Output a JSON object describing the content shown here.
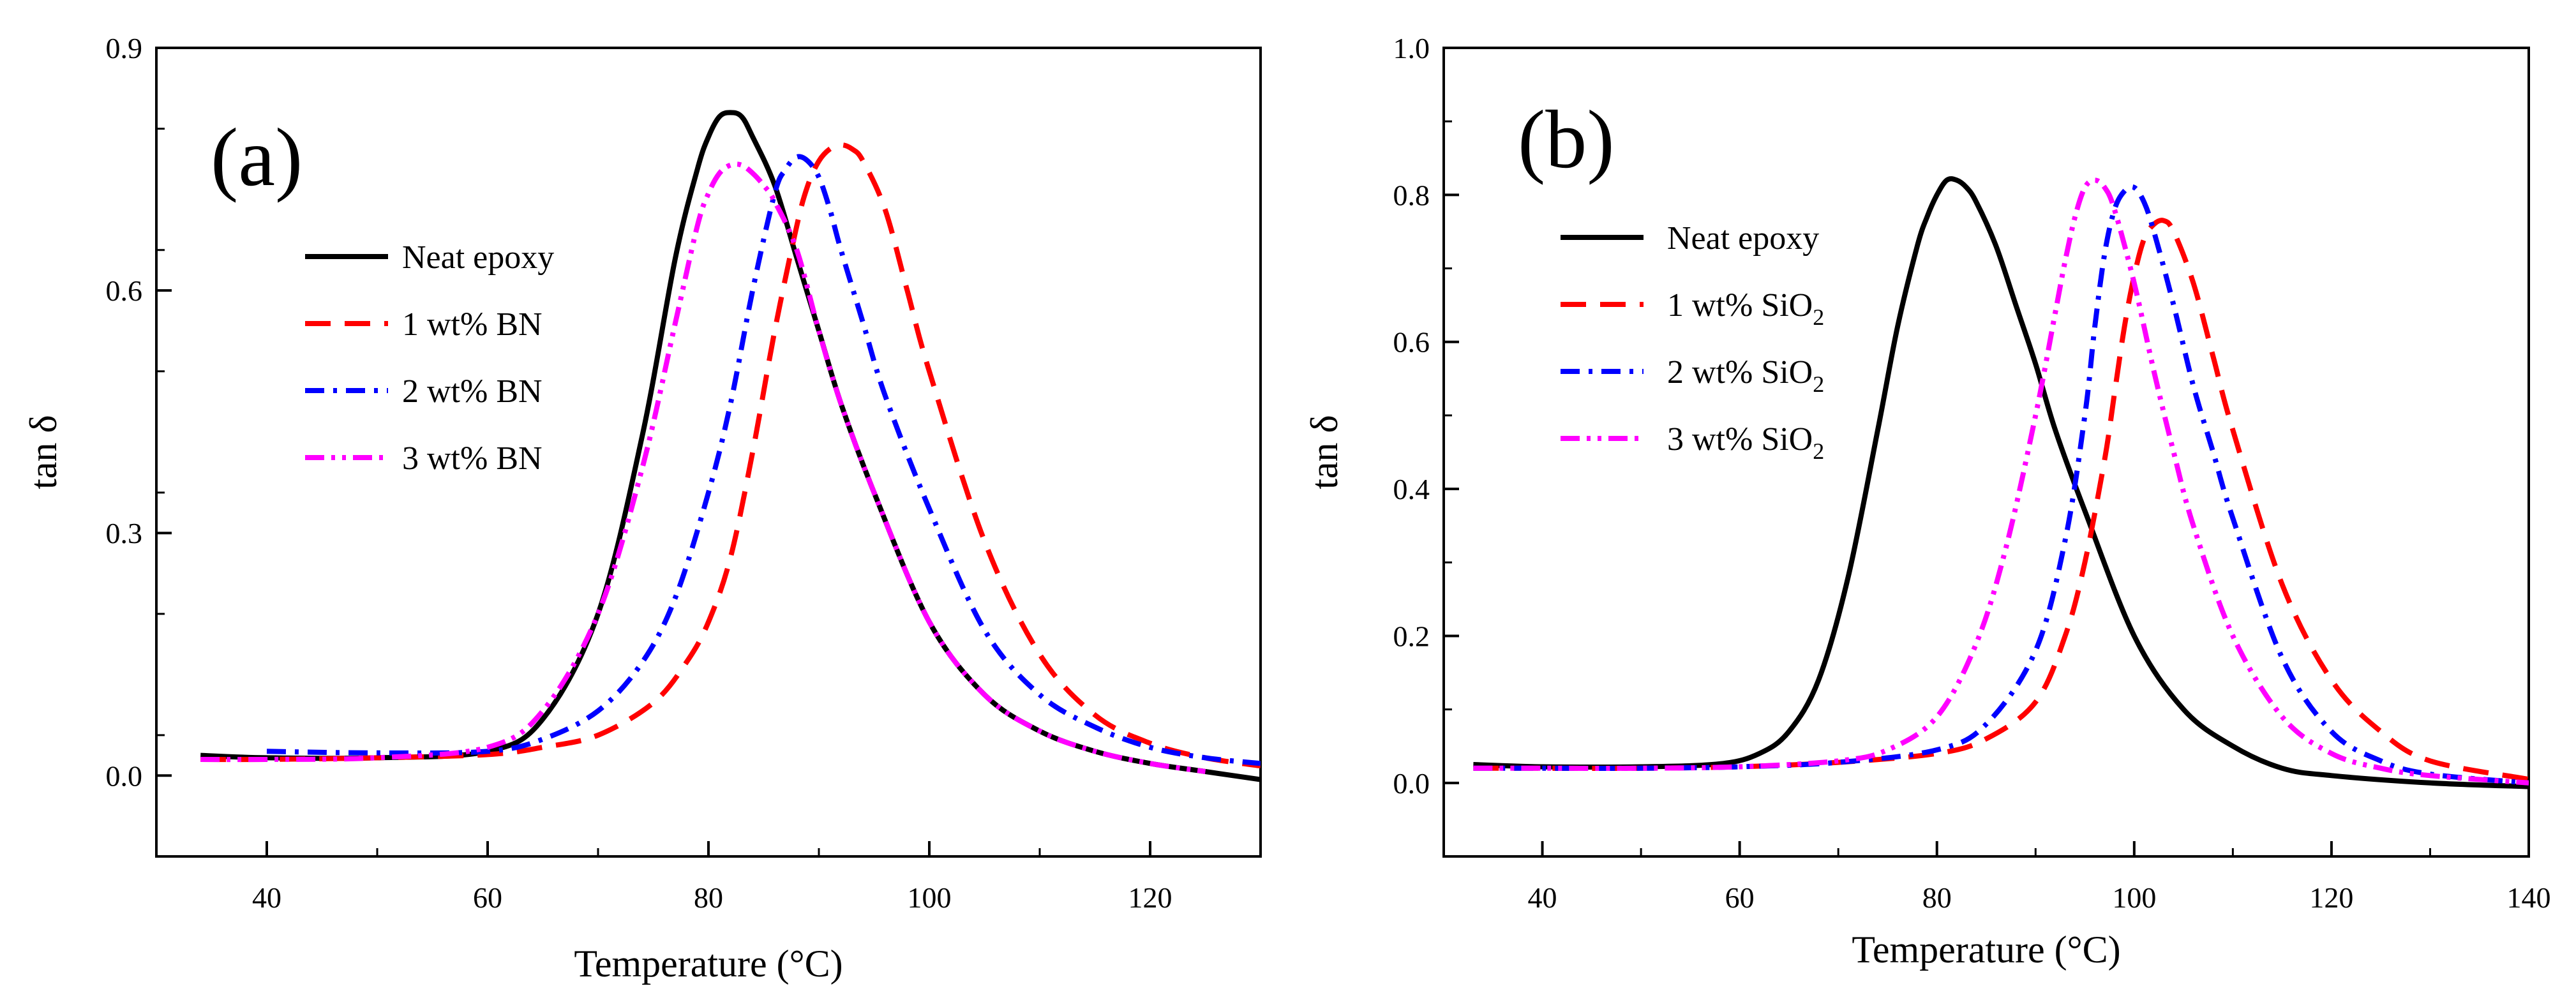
{
  "chart_data": [
    {
      "type": "line",
      "panel_label": "(a)",
      "xlabel": "Temperature (°C)",
      "ylabel": "tan δ",
      "xlim": [
        30,
        130
      ],
      "ylim": [
        -0.1,
        0.9
      ],
      "xticks": [
        40,
        60,
        80,
        100,
        120
      ],
      "xtick_labels": [
        "40",
        "60",
        "80",
        "100",
        "120"
      ],
      "yticks": [
        0.0,
        0.3,
        0.6,
        0.9
      ],
      "ytick_labels": [
        "0.0",
        "0.3",
        "0.6",
        "0.9"
      ],
      "grid": false,
      "legend_position": "upper-left",
      "series": [
        {
          "name": "Neat epoxy",
          "color": "#000000",
          "dash": "solid",
          "x": [
            34,
            40,
            50,
            60,
            65,
            70,
            74,
            77,
            79,
            80,
            81,
            82,
            83,
            84,
            86,
            88,
            90,
            92,
            95,
            100,
            105,
            110,
            115,
            120,
            125,
            130
          ],
          "y": [
            0.025,
            0.022,
            0.022,
            0.03,
            0.07,
            0.2,
            0.42,
            0.64,
            0.75,
            0.79,
            0.815,
            0.82,
            0.815,
            0.79,
            0.73,
            0.64,
            0.55,
            0.46,
            0.35,
            0.19,
            0.1,
            0.055,
            0.03,
            0.015,
            0.005,
            -0.005
          ]
        },
        {
          "name": "1 wt% BN",
          "color": "#ff0000",
          "dash": "dashed",
          "x": [
            34,
            40,
            50,
            60,
            65,
            70,
            75,
            78,
            80,
            82,
            84,
            86,
            88,
            89,
            90,
            91,
            92,
            93,
            94,
            96,
            98,
            100,
            105,
            110,
            115,
            120,
            125,
            130
          ],
          "y": [
            0.02,
            0.02,
            0.022,
            0.026,
            0.035,
            0.05,
            0.09,
            0.14,
            0.19,
            0.27,
            0.4,
            0.55,
            0.68,
            0.73,
            0.76,
            0.775,
            0.78,
            0.775,
            0.76,
            0.7,
            0.6,
            0.5,
            0.29,
            0.15,
            0.075,
            0.04,
            0.022,
            0.012
          ]
        },
        {
          "name": "2 wt% BN",
          "color": "#0000ff",
          "dash": "dashdot",
          "x": [
            40,
            50,
            60,
            65,
            70,
            74,
            77,
            80,
            82,
            84,
            86,
            87,
            88,
            89,
            90,
            91,
            92,
            94,
            96,
            100,
            105,
            110,
            115,
            120,
            125,
            130
          ],
          "y": [
            0.03,
            0.028,
            0.03,
            0.045,
            0.08,
            0.14,
            0.22,
            0.35,
            0.46,
            0.6,
            0.72,
            0.75,
            0.765,
            0.76,
            0.74,
            0.7,
            0.65,
            0.56,
            0.47,
            0.33,
            0.18,
            0.1,
            0.06,
            0.035,
            0.022,
            0.015
          ]
        },
        {
          "name": "3 wt% BN",
          "color": "#ff00ff",
          "dash": "dashdotdot",
          "x": [
            34,
            40,
            50,
            60,
            65,
            70,
            74,
            77,
            79,
            80,
            81,
            82,
            83,
            84,
            85,
            86,
            88,
            90,
            92,
            95,
            100,
            105,
            110,
            115,
            120,
            125
          ],
          "y": [
            0.02,
            0.02,
            0.022,
            0.035,
            0.08,
            0.2,
            0.38,
            0.56,
            0.68,
            0.72,
            0.745,
            0.755,
            0.755,
            0.745,
            0.73,
            0.71,
            0.65,
            0.55,
            0.46,
            0.35,
            0.19,
            0.1,
            0.055,
            0.03,
            0.015,
            0.005
          ]
        }
      ]
    },
    {
      "type": "line",
      "panel_label": "(b)",
      "xlabel": "Temperature (°C)",
      "ylabel": "tan δ",
      "xlim": [
        30,
        140
      ],
      "ylim": [
        -0.1,
        1.0
      ],
      "xticks": [
        40,
        60,
        80,
        100,
        120,
        140
      ],
      "xtick_labels": [
        "40",
        "60",
        "80",
        "100",
        "120",
        "140"
      ],
      "yticks": [
        0.0,
        0.2,
        0.4,
        0.6,
        0.8,
        1.0
      ],
      "ytick_labels": [
        "0.0",
        "0.2",
        "0.4",
        "0.6",
        "0.8",
        "1.0"
      ],
      "grid": false,
      "legend_position": "upper-left",
      "series": [
        {
          "name": "Neat epoxy",
          "color": "#000000",
          "dash": "solid",
          "x": [
            33,
            40,
            50,
            58,
            62,
            65,
            68,
            71,
            74,
            76,
            78,
            79,
            80,
            81,
            82,
            83,
            84,
            86,
            88,
            90,
            92,
            95,
            100,
            105,
            110,
            115,
            120,
            130,
            140
          ],
          "y": [
            0.025,
            0.022,
            0.022,
            0.026,
            0.04,
            0.07,
            0.14,
            0.28,
            0.48,
            0.62,
            0.73,
            0.77,
            0.8,
            0.82,
            0.82,
            0.81,
            0.79,
            0.73,
            0.65,
            0.57,
            0.48,
            0.37,
            0.2,
            0.1,
            0.05,
            0.02,
            0.01,
            0.0,
            -0.005
          ]
        },
        {
          "name": "1 wt% SiO",
          "name_sub": "2",
          "color": "#ff0000",
          "dash": "dashed",
          "x": [
            33,
            40,
            50,
            60,
            70,
            80,
            85,
            90,
            93,
            95,
            97,
            98,
            99,
            100,
            101,
            102,
            103,
            104,
            106,
            108,
            110,
            115,
            120,
            125,
            130,
            140
          ],
          "y": [
            0.02,
            0.02,
            0.02,
            0.022,
            0.028,
            0.04,
            0.06,
            0.11,
            0.2,
            0.3,
            0.44,
            0.53,
            0.62,
            0.69,
            0.74,
            0.76,
            0.765,
            0.75,
            0.68,
            0.58,
            0.48,
            0.27,
            0.14,
            0.07,
            0.03,
            0.005
          ]
        },
        {
          "name": "2 wt% SiO",
          "name_sub": "2",
          "color": "#0000ff",
          "dash": "dashdot",
          "x": [
            33,
            40,
            50,
            60,
            70,
            80,
            85,
            90,
            93,
            95,
            96,
            97,
            98,
            99,
            100,
            101,
            102,
            104,
            106,
            108,
            110,
            115,
            120,
            125,
            130,
            140
          ],
          "y": [
            0.02,
            0.02,
            0.02,
            0.022,
            0.028,
            0.045,
            0.08,
            0.18,
            0.33,
            0.5,
            0.62,
            0.72,
            0.78,
            0.805,
            0.81,
            0.79,
            0.75,
            0.65,
            0.54,
            0.45,
            0.36,
            0.17,
            0.07,
            0.03,
            0.012,
            0.0
          ]
        },
        {
          "name": "3 wt% SiO",
          "name_sub": "2",
          "color": "#ff00ff",
          "dash": "dashdotdot",
          "x": [
            33,
            40,
            50,
            60,
            70,
            75,
            80,
            84,
            87,
            90,
            92,
            93,
            94,
            95,
            96,
            97,
            98,
            100,
            102,
            104,
            106,
            110,
            115,
            120,
            125,
            130,
            140
          ],
          "y": [
            0.02,
            0.02,
            0.02,
            0.022,
            0.03,
            0.045,
            0.09,
            0.19,
            0.32,
            0.5,
            0.64,
            0.71,
            0.77,
            0.81,
            0.82,
            0.81,
            0.78,
            0.68,
            0.56,
            0.45,
            0.35,
            0.2,
            0.09,
            0.04,
            0.02,
            0.01,
            0.0
          ]
        }
      ]
    }
  ]
}
